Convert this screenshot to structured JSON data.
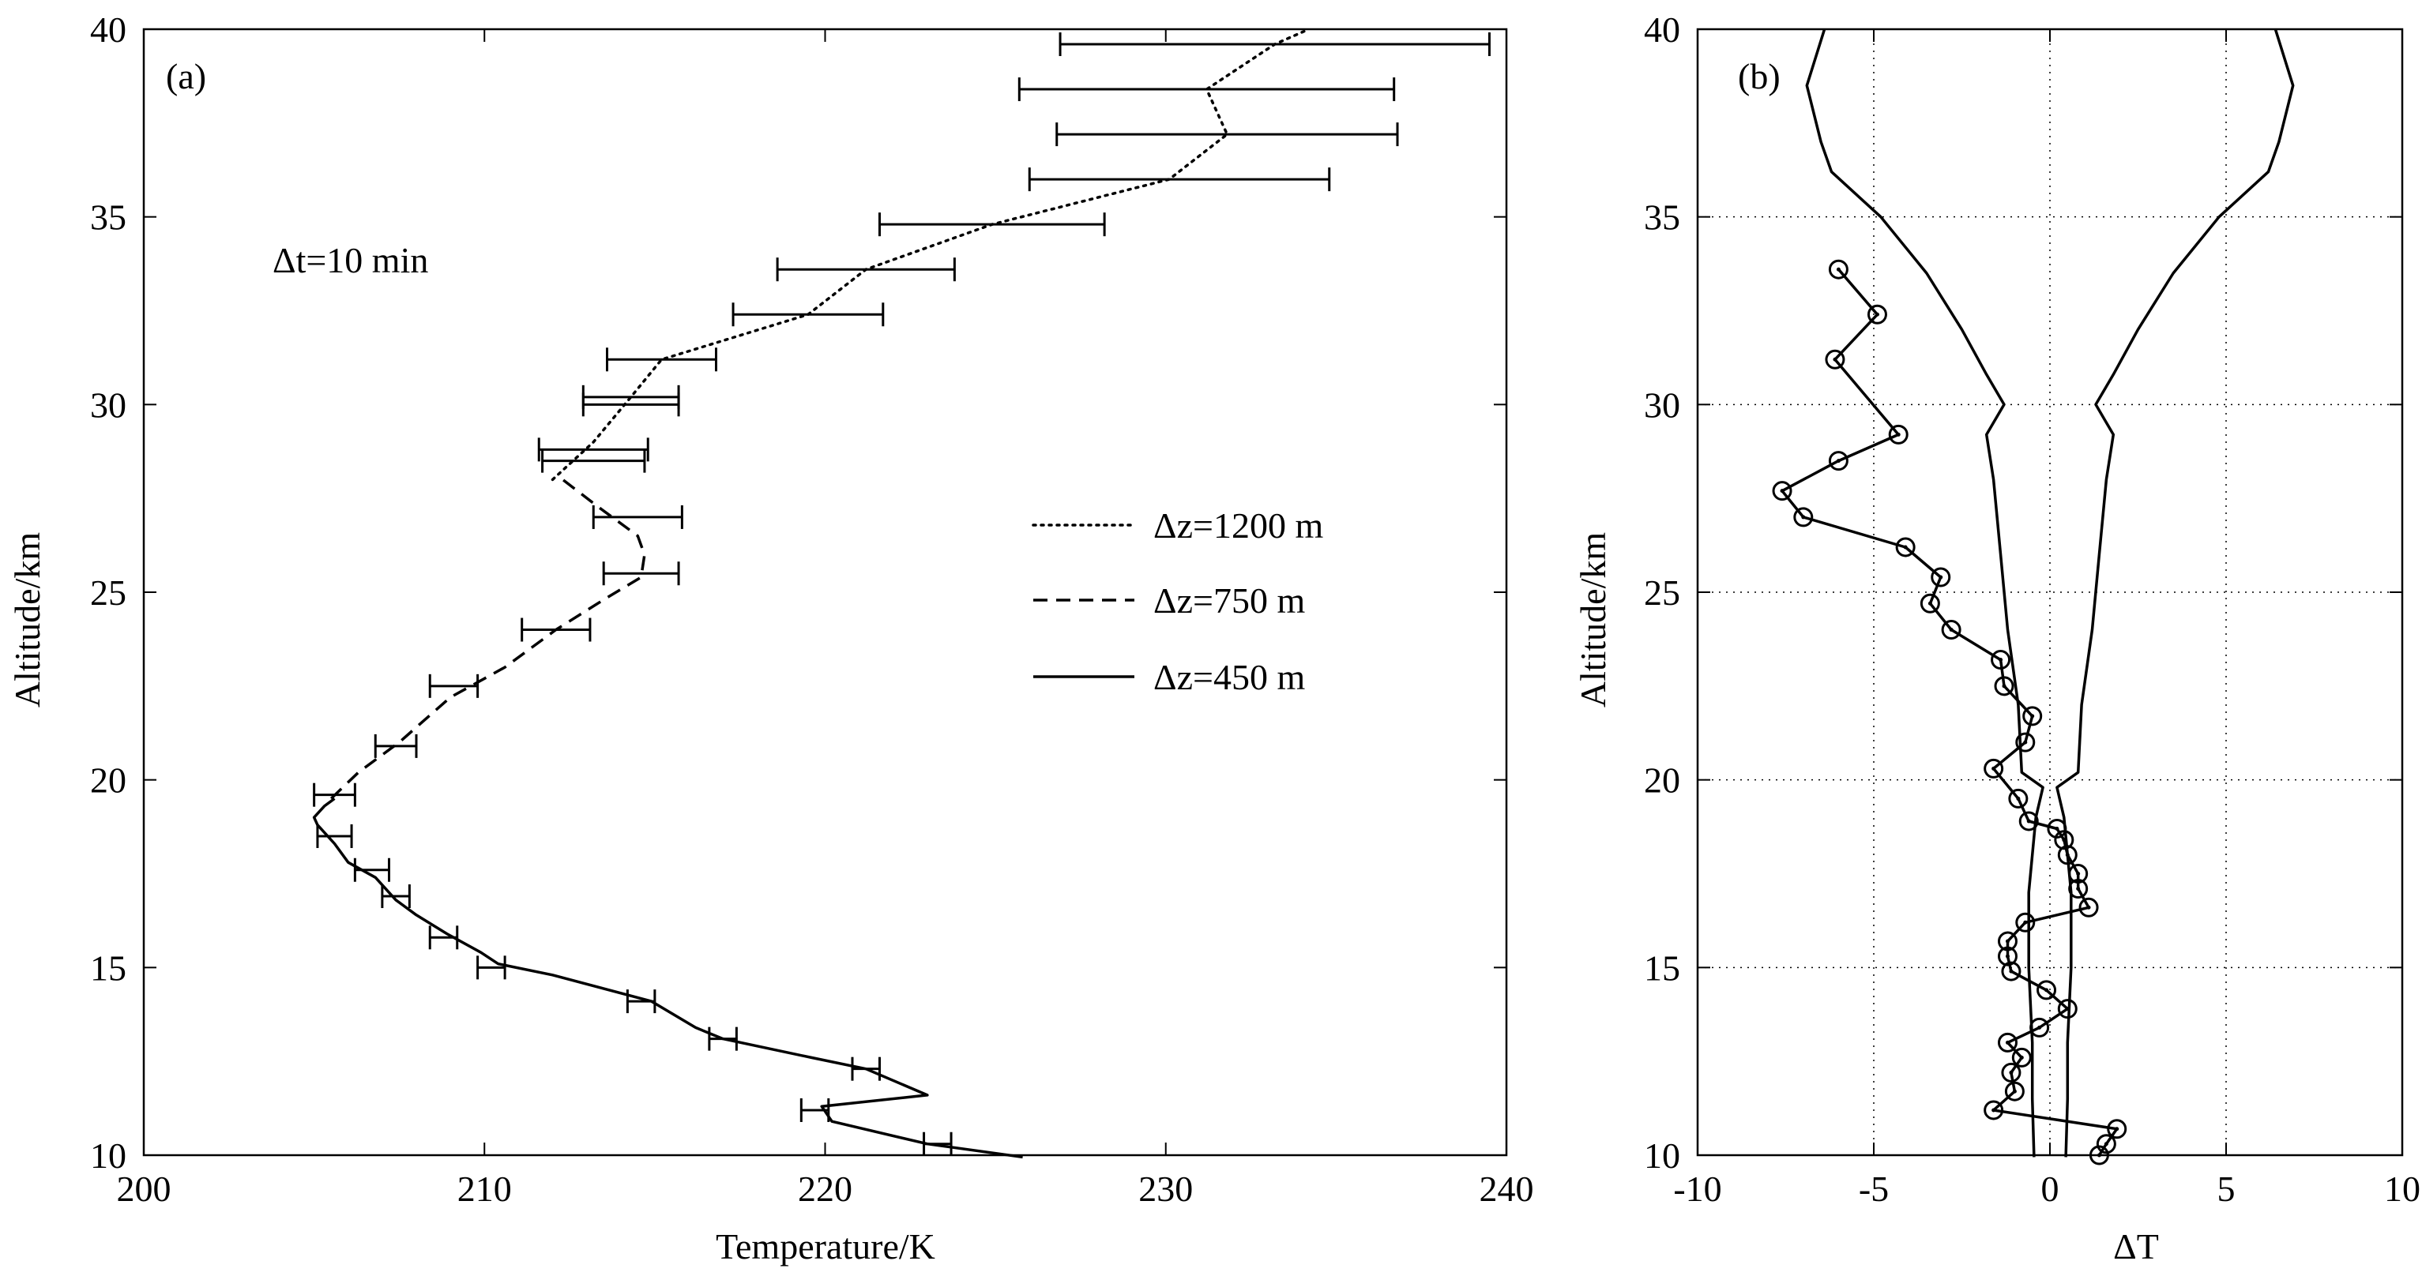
{
  "chart_data": [
    {
      "panel": "(a)",
      "type": "line",
      "annotation": "Δt=10 min",
      "xlabel": "Temperature/K",
      "ylabel": "Altitude/km",
      "xlim": [
        200,
        240
      ],
      "ylim": [
        10,
        40
      ],
      "xticks": [
        200,
        210,
        220,
        230,
        240
      ],
      "yticks": [
        10,
        15,
        20,
        25,
        30,
        35,
        40
      ],
      "grid": false,
      "legend_position": "right",
      "series": [
        {
          "name": "Δz=1200 m",
          "style": "dotted",
          "points": [
            [
              212.0,
              28.0
            ],
            [
              213.2,
              29.0
            ],
            [
              214.3,
              30.2
            ],
            [
              215.2,
              31.2
            ],
            [
              219.5,
              32.4
            ],
            [
              221.2,
              33.6
            ],
            [
              224.9,
              34.8
            ],
            [
              230.1,
              36.0
            ],
            [
              231.8,
              37.2
            ],
            [
              231.2,
              38.4
            ],
            [
              233.2,
              39.6
            ],
            [
              234.2,
              40.0
            ]
          ],
          "errorbars": [
            [
              215.2,
              31.2,
              1.6
            ],
            [
              214.3,
              30.2,
              1.4
            ],
            [
              213.2,
              28.8,
              1.6
            ],
            [
              219.5,
              32.4,
              2.2
            ],
            [
              221.2,
              33.6,
              2.6
            ],
            [
              224.9,
              34.8,
              3.3
            ],
            [
              230.4,
              36.0,
              4.4
            ],
            [
              231.8,
              37.2,
              5.0
            ],
            [
              231.2,
              38.4,
              5.5
            ],
            [
              233.2,
              39.6,
              6.3
            ]
          ]
        },
        {
          "name": "Δz=750 m",
          "style": "dashed",
          "points": [
            [
              205.5,
              19.5
            ],
            [
              206.3,
              20.2
            ],
            [
              207.5,
              21.0
            ],
            [
              209.0,
              22.2
            ],
            [
              210.6,
              23.0
            ],
            [
              212.1,
              24.0
            ],
            [
              213.5,
              24.8
            ],
            [
              214.6,
              25.4
            ],
            [
              214.7,
              26.0
            ],
            [
              214.5,
              26.5
            ],
            [
              213.3,
              27.3
            ],
            [
              212.3,
              28.0
            ]
          ],
          "errorbars": [
            [
              205.6,
              19.6,
              0.6
            ],
            [
              207.4,
              20.9,
              0.6
            ],
            [
              209.1,
              22.5,
              0.7
            ],
            [
              212.1,
              24.0,
              1.0
            ],
            [
              214.6,
              25.5,
              1.1
            ],
            [
              214.5,
              27.0,
              1.3
            ],
            [
              213.2,
              28.5,
              1.5
            ],
            [
              214.3,
              30.0,
              1.4
            ]
          ]
        },
        {
          "name": "Δz=450 m",
          "style": "solid",
          "points": [
            [
              225.8,
              9.95
            ],
            [
              223.0,
              10.3
            ],
            [
              220.2,
              10.9
            ],
            [
              219.9,
              11.3
            ],
            [
              223.0,
              11.6
            ],
            [
              221.2,
              12.3
            ],
            [
              219.6,
              12.6
            ],
            [
              217.0,
              13.1
            ],
            [
              216.2,
              13.4
            ],
            [
              214.9,
              14.1
            ],
            [
              212.0,
              14.8
            ],
            [
              210.4,
              15.1
            ],
            [
              209.9,
              15.4
            ],
            [
              208.9,
              15.9
            ],
            [
              208.0,
              16.4
            ],
            [
              207.4,
              16.8
            ],
            [
              206.8,
              17.4
            ],
            [
              206.0,
              17.8
            ],
            [
              205.6,
              18.3
            ],
            [
              205.1,
              18.8
            ],
            [
              205.0,
              19.0
            ],
            [
              205.3,
              19.3
            ],
            [
              205.6,
              19.5
            ]
          ],
          "errorbars": [
            [
              223.3,
              10.3,
              0.4
            ],
            [
              219.7,
              11.2,
              0.4
            ],
            [
              221.2,
              12.3,
              0.4
            ],
            [
              217.0,
              13.1,
              0.4
            ],
            [
              214.6,
              14.1,
              0.4
            ],
            [
              210.2,
              15.0,
              0.4
            ],
            [
              208.8,
              15.8,
              0.4
            ],
            [
              207.4,
              16.9,
              0.4
            ],
            [
              206.7,
              17.6,
              0.5
            ],
            [
              205.6,
              18.5,
              0.5
            ]
          ]
        }
      ]
    },
    {
      "panel": "(b)",
      "type": "line",
      "xlabel": "ΔT",
      "ylabel": "Altitude/km",
      "xlim": [
        -10,
        10
      ],
      "ylim": [
        10,
        40
      ],
      "xticks": [
        -10,
        -5,
        0,
        5,
        10
      ],
      "yticks": [
        10,
        15,
        20,
        25,
        30,
        35,
        40
      ],
      "grid": true,
      "series": [
        {
          "style": "solid",
          "marker": "circle",
          "points": [
            [
              -6.0,
              33.6
            ],
            [
              -4.9,
              32.4
            ],
            [
              -6.1,
              31.2
            ],
            [
              -4.3,
              29.2
            ],
            [
              -6.0,
              28.5
            ],
            [
              -7.6,
              27.7
            ],
            [
              -7.0,
              27.0
            ],
            [
              -4.1,
              26.2
            ],
            [
              -3.1,
              25.4
            ],
            [
              -3.4,
              24.7
            ],
            [
              -2.8,
              24.0
            ],
            [
              -1.4,
              23.2
            ],
            [
              -1.3,
              22.5
            ],
            [
              -0.5,
              21.7
            ],
            [
              -0.7,
              21.0
            ],
            [
              -1.6,
              20.3
            ],
            [
              -0.9,
              19.5
            ],
            [
              -0.6,
              18.9
            ],
            [
              0.2,
              18.7
            ],
            [
              0.4,
              18.4
            ],
            [
              0.5,
              18.0
            ],
            [
              0.8,
              17.5
            ],
            [
              0.8,
              17.1
            ],
            [
              1.1,
              16.6
            ],
            [
              -0.7,
              16.2
            ],
            [
              -1.2,
              15.7
            ],
            [
              -1.2,
              15.3
            ],
            [
              -1.1,
              14.9
            ],
            [
              -0.1,
              14.4
            ],
            [
              0.5,
              13.9
            ],
            [
              -0.3,
              13.4
            ],
            [
              -1.2,
              13.0
            ],
            [
              -0.8,
              12.6
            ],
            [
              -1.1,
              12.2
            ],
            [
              -1.0,
              11.7
            ],
            [
              -1.6,
              11.2
            ],
            [
              1.9,
              10.7
            ],
            [
              1.6,
              10.3
            ],
            [
              1.4,
              10.0
            ]
          ]
        },
        {
          "style": "solid",
          "points": [
            [
              -0.45,
              9.95
            ],
            [
              -0.5,
              11.5
            ],
            [
              -0.5,
              13.0
            ],
            [
              -0.6,
              15.0
            ],
            [
              -0.6,
              17.0
            ],
            [
              -0.4,
              19.0
            ],
            [
              -0.2,
              19.8
            ],
            [
              -0.8,
              20.2
            ],
            [
              -0.9,
              22.0
            ],
            [
              -1.2,
              24.0
            ],
            [
              -1.4,
              26.0
            ],
            [
              -1.6,
              28.0
            ],
            [
              -1.8,
              29.2
            ],
            [
              -1.3,
              30.0
            ],
            [
              -1.8,
              30.8
            ],
            [
              -2.5,
              32.0
            ],
            [
              -3.5,
              33.5
            ],
            [
              -4.8,
              35.0
            ],
            [
              -6.2,
              36.2
            ],
            [
              -6.5,
              37.0
            ],
            [
              -6.9,
              38.5
            ],
            [
              -6.4,
              40.0
            ]
          ]
        },
        {
          "style": "solid",
          "points": [
            [
              0.45,
              9.95
            ],
            [
              0.5,
              11.5
            ],
            [
              0.5,
              13.0
            ],
            [
              0.6,
              15.0
            ],
            [
              0.6,
              17.0
            ],
            [
              0.4,
              19.0
            ],
            [
              0.2,
              19.8
            ],
            [
              0.8,
              20.2
            ],
            [
              0.9,
              22.0
            ],
            [
              1.2,
              24.0
            ],
            [
              1.4,
              26.0
            ],
            [
              1.6,
              28.0
            ],
            [
              1.8,
              29.2
            ],
            [
              1.3,
              30.0
            ],
            [
              1.8,
              30.8
            ],
            [
              2.5,
              32.0
            ],
            [
              3.5,
              33.5
            ],
            [
              4.8,
              35.0
            ],
            [
              6.2,
              36.2
            ],
            [
              6.5,
              37.0
            ],
            [
              6.9,
              38.5
            ],
            [
              6.4,
              40.0
            ]
          ]
        }
      ]
    }
  ]
}
